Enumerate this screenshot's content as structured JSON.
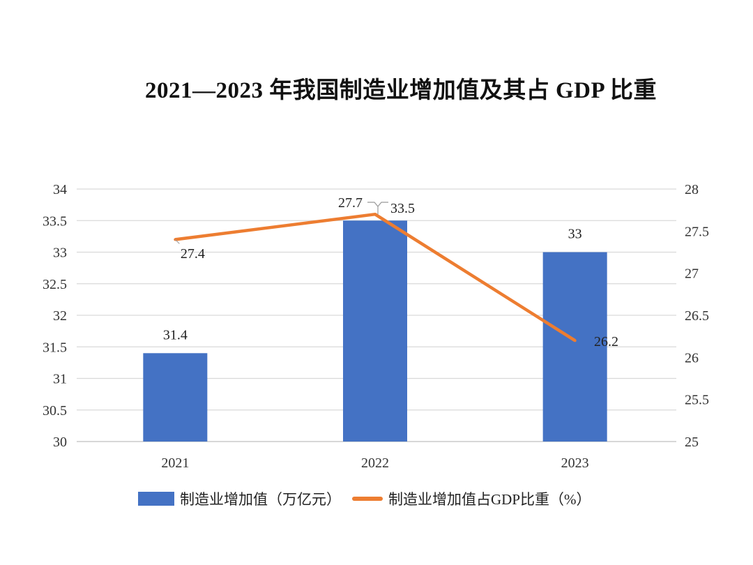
{
  "chart_data": {
    "type": "bar+line",
    "title": "2021—2023 年我国制造业增加值及其占 GDP 比重",
    "categories": [
      "2021",
      "2022",
      "2023"
    ],
    "series": [
      {
        "name": "制造业增加值（万亿元）",
        "type": "bar",
        "axis": "left",
        "values": [
          31.4,
          33.5,
          33
        ],
        "labels": [
          "31.4",
          "33.5",
          "33"
        ],
        "color": "#4472C4"
      },
      {
        "name": "制造业增加值占GDP比重（%）",
        "type": "line",
        "axis": "right",
        "values": [
          27.4,
          27.7,
          26.2
        ],
        "labels": [
          "27.4",
          "27.7",
          "26.2"
        ],
        "color": "#ED7D31"
      }
    ],
    "left_axis": {
      "ylim": [
        30,
        34
      ],
      "ticks": [
        "30",
        "30.5",
        "31",
        "31.5",
        "32",
        "32.5",
        "33",
        "33.5",
        "34"
      ]
    },
    "right_axis": {
      "ylim": [
        25,
        28
      ],
      "ticks": [
        "25",
        "25.5",
        "26",
        "26.5",
        "27",
        "27.5",
        "28"
      ]
    },
    "grid": true,
    "legend_position": "bottom"
  }
}
